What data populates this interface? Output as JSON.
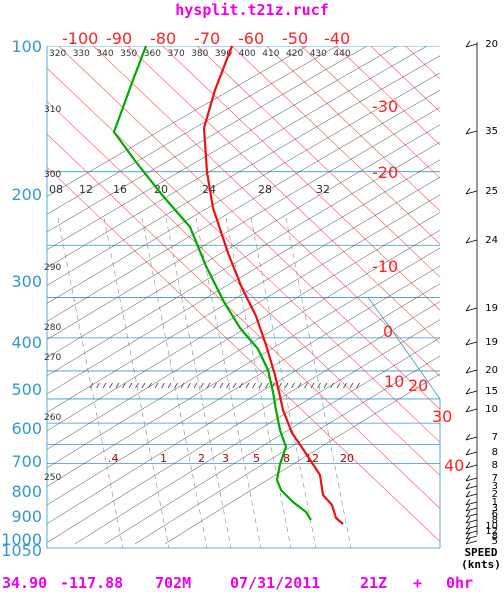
{
  "title": "hysplit.t21z.rucf",
  "footer": {
    "lat": "34.90",
    "lon": "-117.88",
    "elev": "702M",
    "date": "07/31/2011",
    "hour": "21Z",
    "plus": "+",
    "fcst": "0hr"
  },
  "colors": {
    "title": "#ee00ee",
    "pressure": "#3399cc",
    "temperature": "#ff2222",
    "dewpoint": "#00aa00",
    "isotherm": "#ff5555",
    "dry_adiabat": "#444444",
    "mixing_ratio": "#888888"
  },
  "pressure_labels": [
    "100",
    "200",
    "300",
    "400",
    "500",
    "600",
    "700",
    "800",
    "900",
    "1000",
    "1050"
  ],
  "temp_top_labels": [
    "-100",
    "-90",
    "-80",
    "-70",
    "-60",
    "-50",
    "-40"
  ],
  "temp_side_labels": [
    "-30",
    "-20",
    "-10",
    "0",
    "10",
    "20",
    "30",
    "40"
  ],
  "theta_top_labels": [
    "320",
    "330",
    "340",
    "350",
    "360",
    "370",
    "380",
    "390",
    "400",
    "410",
    "420",
    "430",
    "440"
  ],
  "theta_left_labels": [
    "310",
    "300",
    "290",
    "280",
    "270",
    "260",
    "250"
  ],
  "mixing_ratio_upper": [
    "08",
    "12",
    "16",
    "20",
    "24",
    "28",
    "32"
  ],
  "mixing_ratio_lower": [
    ".4",
    "1",
    "2",
    "3",
    "5",
    "8",
    "12",
    "20"
  ],
  "wind_speed_header": [
    "SPEED",
    "(knts)"
  ],
  "wind_speeds": [
    "20",
    "35",
    "25",
    "24",
    "19",
    "19",
    "20",
    "15",
    "10",
    "7",
    "8",
    "8",
    "7",
    "3",
    "2",
    "1",
    "3",
    "6",
    "8",
    "10",
    "12",
    "8",
    "5"
  ],
  "chart_data": {
    "type": "line",
    "title": "hysplit.t21z.rucf",
    "y_axis": "pressure (hPa, log scale, inverted)",
    "x_axis": "temperature (°C, skewed)",
    "ylim": [
      1050,
      100
    ],
    "series": [
      {
        "name": "temperature",
        "points": [
          {
            "p": 100,
            "t": -75
          },
          {
            "p": 130,
            "t": -63
          },
          {
            "p": 160,
            "t": -57
          },
          {
            "p": 200,
            "t": -52
          },
          {
            "p": 250,
            "t": -43
          },
          {
            "p": 300,
            "t": -36
          },
          {
            "p": 350,
            "t": -28
          },
          {
            "p": 400,
            "t": -20
          },
          {
            "p": 450,
            "t": -14
          },
          {
            "p": 500,
            "t": -8
          },
          {
            "p": 550,
            "t": -3
          },
          {
            "p": 600,
            "t": 2
          },
          {
            "p": 650,
            "t": 7
          },
          {
            "p": 700,
            "t": 13
          },
          {
            "p": 750,
            "t": 18
          },
          {
            "p": 800,
            "t": 22
          },
          {
            "p": 850,
            "t": 27
          },
          {
            "p": 900,
            "t": 31
          },
          {
            "p": 930,
            "t": 34
          }
        ]
      },
      {
        "name": "dewpoint",
        "points": [
          {
            "p": 100,
            "t": -97
          },
          {
            "p": 130,
            "t": -95
          },
          {
            "p": 160,
            "t": -87
          },
          {
            "p": 200,
            "t": -68
          },
          {
            "p": 250,
            "t": -52
          },
          {
            "p": 300,
            "t": -41
          },
          {
            "p": 350,
            "t": -31
          },
          {
            "p": 400,
            "t": -22
          },
          {
            "p": 450,
            "t": -17
          },
          {
            "p": 500,
            "t": -12
          },
          {
            "p": 550,
            "t": -7
          },
          {
            "p": 600,
            "t": -2
          },
          {
            "p": 650,
            "t": 4
          },
          {
            "p": 700,
            "t": 4
          },
          {
            "p": 750,
            "t": 6
          },
          {
            "p": 800,
            "t": 11
          },
          {
            "p": 850,
            "t": 17
          },
          {
            "p": 900,
            "t": 24
          },
          {
            "p": 930,
            "t": 28
          }
        ]
      }
    ],
    "wind_speed_knots": [
      20,
      35,
      25,
      24,
      19,
      19,
      20,
      15,
      10,
      7,
      8,
      8,
      7,
      3,
      2,
      1,
      3,
      6,
      8,
      10,
      12,
      8,
      5
    ]
  }
}
